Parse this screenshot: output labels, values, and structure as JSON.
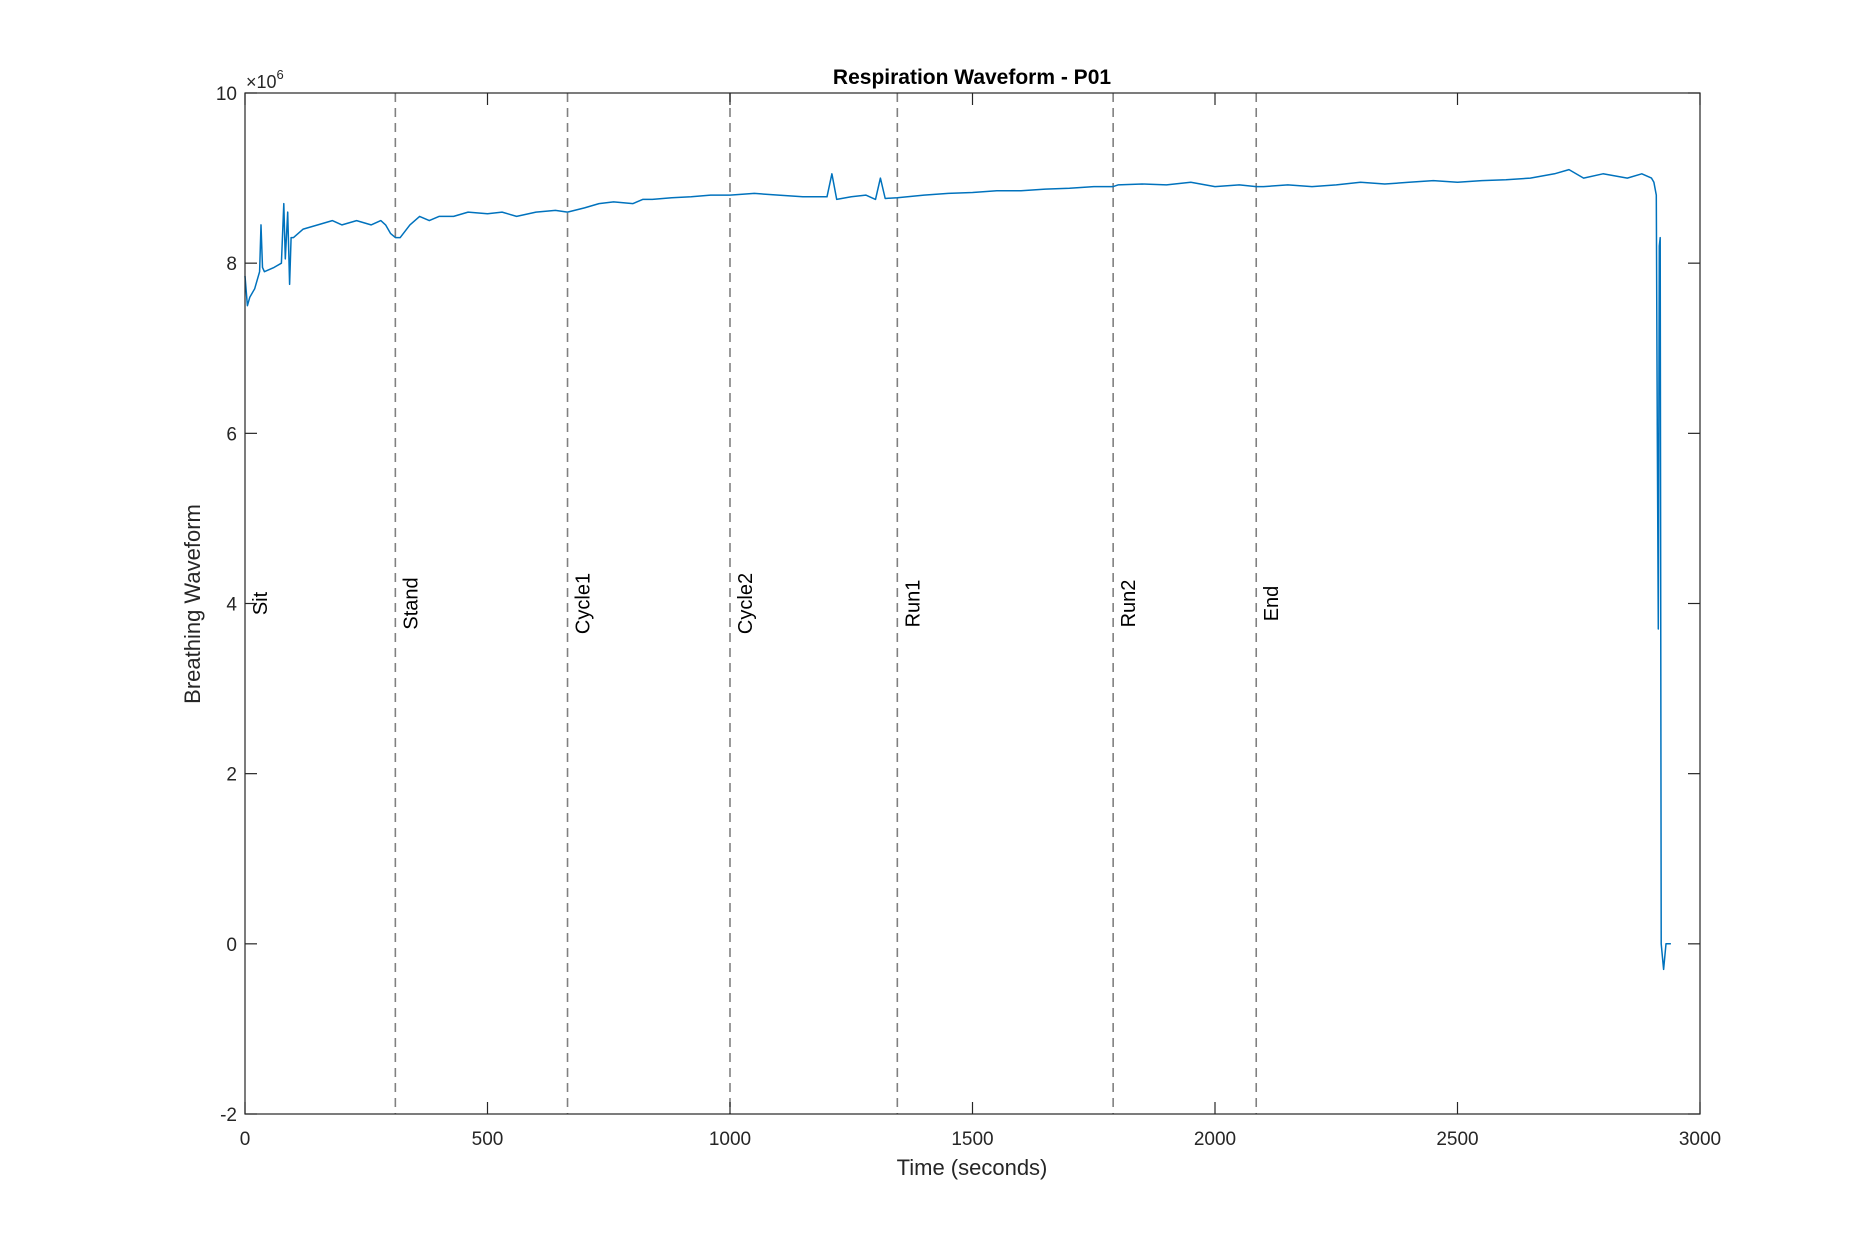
{
  "chart_data": {
    "type": "line",
    "title": "Respiration Waveform - P01",
    "xlabel": "Time (seconds)",
    "ylabel": "Breathing Waveform",
    "xlim": [
      0,
      3000
    ],
    "ylim": [
      -2,
      10
    ],
    "y_scale_multiplier": "×10",
    "y_scale_exponent": "6",
    "x_ticks": [
      0,
      500,
      1000,
      1500,
      2000,
      2500,
      3000
    ],
    "y_ticks": [
      -2,
      0,
      2,
      4,
      6,
      8,
      10
    ],
    "x_tick_labels": [
      "0",
      "500",
      "1000",
      "1500",
      "2000",
      "2500",
      "3000"
    ],
    "y_tick_labels": [
      "-2",
      "0",
      "2",
      "4",
      "6",
      "8",
      "10"
    ],
    "grid": false,
    "series_color": "#0072BD",
    "marker_line_color": "#808080",
    "markers": [
      {
        "label": "Sit",
        "x": 0
      },
      {
        "label": "Stand",
        "x": 310
      },
      {
        "label": "Cycle1",
        "x": 665
      },
      {
        "label": "Cycle2",
        "x": 1000
      },
      {
        "label": "Run1",
        "x": 1345
      },
      {
        "label": "Run2",
        "x": 1790
      },
      {
        "label": "End",
        "x": 2085
      }
    ],
    "series": [
      {
        "x": [
          0,
          5,
          10,
          20,
          30,
          33,
          36,
          40,
          60,
          75,
          80,
          83,
          88,
          92,
          95,
          100,
          120,
          150,
          180,
          200,
          230,
          260,
          280,
          290,
          300,
          310,
          320,
          340,
          360,
          380,
          400,
          430,
          460,
          500,
          530,
          560,
          600,
          640,
          665,
          700,
          730,
          760,
          800,
          820,
          840,
          880,
          920,
          960,
          1000,
          1050,
          1100,
          1150,
          1200,
          1210,
          1220,
          1250,
          1280,
          1300,
          1310,
          1320,
          1345,
          1400,
          1450,
          1500,
          1550,
          1600,
          1650,
          1700,
          1750,
          1790,
          1800,
          1850,
          1900,
          1950,
          2000,
          2050,
          2085,
          2100,
          2150,
          2200,
          2250,
          2300,
          2350,
          2400,
          2450,
          2500,
          2550,
          2600,
          2650,
          2700,
          2730,
          2760,
          2800,
          2850,
          2880,
          2900,
          2905,
          2910,
          2912,
          2914,
          2916,
          2918,
          2920,
          2925,
          2930,
          2940
        ],
        "y": [
          7.85,
          7.5,
          7.6,
          7.7,
          7.9,
          8.45,
          7.95,
          7.9,
          7.95,
          8.0,
          8.7,
          8.05,
          8.6,
          7.75,
          8.3,
          8.3,
          8.4,
          8.45,
          8.5,
          8.45,
          8.5,
          8.45,
          8.5,
          8.45,
          8.35,
          8.3,
          8.3,
          8.45,
          8.55,
          8.5,
          8.55,
          8.55,
          8.6,
          8.58,
          8.6,
          8.55,
          8.6,
          8.62,
          8.6,
          8.65,
          8.7,
          8.72,
          8.7,
          8.75,
          8.75,
          8.77,
          8.78,
          8.8,
          8.8,
          8.82,
          8.8,
          8.78,
          8.78,
          9.05,
          8.75,
          8.78,
          8.8,
          8.75,
          9.0,
          8.76,
          8.77,
          8.8,
          8.82,
          8.83,
          8.85,
          8.85,
          8.87,
          8.88,
          8.9,
          8.9,
          8.92,
          8.93,
          8.92,
          8.95,
          8.9,
          8.92,
          8.9,
          8.9,
          8.92,
          8.9,
          8.92,
          8.95,
          8.93,
          8.95,
          8.97,
          8.95,
          8.97,
          8.98,
          9.0,
          9.05,
          9.1,
          9.0,
          9.05,
          9.0,
          9.05,
          9.0,
          8.95,
          8.8,
          6.0,
          3.7,
          8.2,
          8.3,
          0.0,
          -0.3,
          0.0,
          0.0
        ]
      }
    ]
  }
}
